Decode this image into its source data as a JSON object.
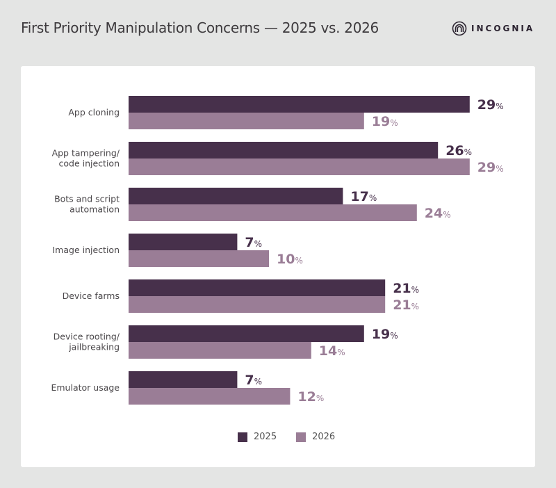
{
  "header": {
    "title": "First Priority Manipulation Concerns — 2025 vs. 2026",
    "logo_text": "INCOGNIA",
    "logo_icon": "fingerprint-arc-icon"
  },
  "colors": {
    "series_2025": "#47304b",
    "series_2026": "#9a7d96",
    "background": "#e4e5e4",
    "card": "#ffffff"
  },
  "chart_data": {
    "type": "bar",
    "orientation": "horizontal",
    "title": "First Priority Manipulation Concerns — 2025 vs. 2026",
    "xlabel": "",
    "ylabel": "",
    "unit": "%",
    "grid": false,
    "legend_position": "bottom",
    "categories": [
      [
        "App cloning"
      ],
      [
        "App tampering/",
        "code injection"
      ],
      [
        "Bots and script",
        "automation"
      ],
      [
        "Image injection"
      ],
      [
        "Device farms"
      ],
      [
        "Device rooting/",
        "jailbreaking"
      ],
      [
        "Emulator usage"
      ]
    ],
    "series": [
      {
        "name": "2025",
        "values": [
          29,
          26,
          17,
          7,
          21,
          19,
          7
        ]
      },
      {
        "name": "2026",
        "values": [
          19,
          29,
          24,
          10,
          21,
          14,
          12
        ]
      }
    ]
  }
}
